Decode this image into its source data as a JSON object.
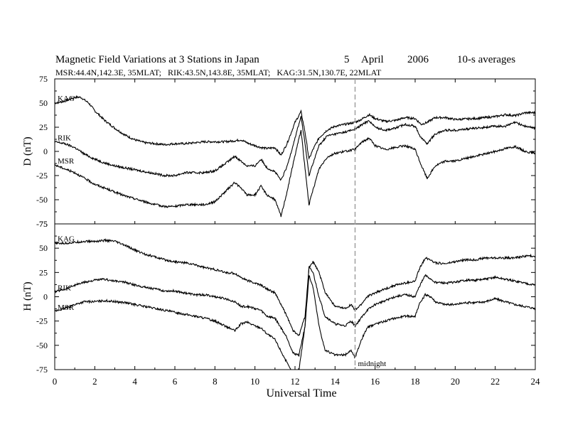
{
  "header": {
    "title_main": "Magnetic Field Variations at 3 Stations in Japan",
    "title_day": "5",
    "title_month": "April",
    "title_year": "2006",
    "title_avg": "10-s averages",
    "subtitle": "MSR:44.4N,142.3E, 35MLAT;   RIK:43.5N,143.8E, 35MLAT;   KAG:31.5N,130.7E, 22MLAT"
  },
  "chart_data": {
    "type": "line",
    "xlabel": "Universal Time",
    "xlim": [
      0,
      24
    ],
    "x_ticks": [
      "0",
      "2",
      "4",
      "6",
      "8",
      "10",
      "12",
      "14",
      "16",
      "18",
      "20",
      "22",
      "24"
    ],
    "midnight_marker": {
      "x": 15,
      "label": "midnight",
      "color": "#a0a0a0"
    },
    "grid": false,
    "line_color": "#000000",
    "panels": [
      {
        "ylabel": "D (nT)",
        "ylim": [
          -75,
          75
        ],
        "y_ticks": [
          "75",
          "50",
          "25",
          "0",
          "-25",
          "-50",
          "-75"
        ],
        "series": [
          {
            "name": "KAG",
            "x": [
              0,
              0.5,
              1,
              1.3,
              1.7,
              2,
              2.5,
              3,
              3.5,
              4,
              4.5,
              5,
              5.5,
              6,
              6.5,
              7,
              7.5,
              8,
              8.5,
              9,
              9.3,
              9.7,
              10,
              10.3,
              10.6,
              11,
              11.3,
              11.6,
              12,
              12.3,
              12.5,
              12.7,
              12.9,
              13.2,
              13.6,
              14,
              14.5,
              15,
              15.3,
              15.7,
              16,
              16.5,
              17,
              17.5,
              18,
              18.3,
              18.6,
              19,
              19.5,
              20,
              21,
              22,
              22.5,
              23,
              23.5,
              24
            ],
            "values": [
              50,
              52,
              56,
              56,
              50,
              42,
              32,
              24,
              17,
              12,
              9,
              8,
              7,
              8,
              8,
              9,
              10,
              10,
              10,
              11,
              12,
              8,
              6,
              4,
              3,
              4,
              -4,
              8,
              30,
              41,
              20,
              -8,
              2,
              14,
              22,
              26,
              28,
              30,
              33,
              38,
              34,
              31,
              32,
              35,
              34,
              28,
              30,
              35,
              35,
              33,
              34,
              36,
              38,
              37,
              40,
              40
            ]
          },
          {
            "name": "RIK",
            "x": [
              0,
              0.5,
              1,
              1.5,
              2,
              2.5,
              3,
              3.5,
              4,
              4.5,
              5,
              5.5,
              6,
              6.5,
              7,
              7.5,
              8,
              8.5,
              9,
              9.3,
              9.6,
              10,
              10.3,
              10.6,
              11,
              11.3,
              11.6,
              12,
              12.3,
              12.5,
              12.7,
              12.9,
              13.2,
              13.6,
              14,
              14.5,
              15,
              15.3,
              15.7,
              16,
              16.5,
              17,
              17.5,
              18,
              18.3,
              18.6,
              19,
              19.5,
              20,
              21,
              22,
              22.5,
              23,
              23.5,
              24
            ],
            "values": [
              10,
              8,
              4,
              -3,
              -8,
              -12,
              -15,
              -17,
              -19,
              -21,
              -23,
              -25,
              -25,
              -22,
              -22,
              -22,
              -20,
              -13,
              -5,
              -10,
              -15,
              -15,
              -8,
              -17,
              -21,
              -30,
              -16,
              14,
              36,
              8,
              -25,
              -12,
              6,
              16,
              18,
              20,
              23,
              27,
              32,
              25,
              22,
              24,
              28,
              26,
              14,
              8,
              18,
              22,
              22,
              24,
              26,
              26,
              30,
              26,
              24
            ]
          },
          {
            "name": "MSR",
            "x": [
              0,
              0.5,
              1,
              1.5,
              2,
              2.5,
              3,
              3.5,
              4,
              4.5,
              5,
              5.5,
              6,
              6.5,
              7,
              7.5,
              8,
              8.5,
              9,
              9.3,
              9.6,
              10,
              10.3,
              10.6,
              11,
              11.3,
              11.6,
              12,
              12.3,
              12.5,
              12.7,
              12.9,
              13.2,
              13.6,
              14,
              14.5,
              15,
              15.3,
              15.7,
              16,
              16.5,
              17,
              17.5,
              18,
              18.3,
              18.6,
              19,
              19.5,
              20,
              21,
              22,
              22.5,
              23,
              23.5,
              24
            ],
            "values": [
              -14,
              -18,
              -22,
              -28,
              -34,
              -38,
              -42,
              -46,
              -49,
              -52,
              -55,
              -57,
              -57,
              -55,
              -55,
              -55,
              -52,
              -42,
              -32,
              -38,
              -45,
              -45,
              -36,
              -45,
              -50,
              -67,
              -42,
              -4,
              22,
              -18,
              -55,
              -40,
              -18,
              -6,
              -2,
              0,
              2,
              9,
              14,
              6,
              2,
              4,
              6,
              2,
              -14,
              -28,
              -15,
              -10,
              -10,
              -5,
              0,
              3,
              5,
              0,
              -2
            ]
          }
        ],
        "annotations": [
          "KAG",
          "RIK",
          "MSR"
        ]
      },
      {
        "ylabel": "H (nT)",
        "ylim": [
          -75,
          75
        ],
        "y_ticks": [
          "75",
          "50",
          "25",
          "0",
          "-25",
          "-50",
          "-75"
        ],
        "series": [
          {
            "name": "KAG",
            "x": [
              0,
              0.5,
              1,
              1.5,
              2,
              2.5,
              3,
              3.5,
              4,
              4.5,
              5,
              5.5,
              6,
              6.5,
              7,
              7.5,
              8,
              8.5,
              9,
              9.3,
              9.6,
              10,
              10.3,
              10.6,
              11,
              11.3,
              11.6,
              11.9,
              12.2,
              12.5,
              12.7,
              12.9,
              13.2,
              13.5,
              14,
              14.5,
              14.8,
              15,
              15.3,
              15.6,
              16,
              16.5,
              17,
              17.5,
              18,
              18.2,
              18.5,
              18.8,
              19,
              19.5,
              20,
              20.5,
              21,
              21.5,
              22,
              22.5,
              23,
              23.5,
              24
            ],
            "values": [
              55,
              55,
              56,
              57,
              57,
              58,
              57,
              53,
              48,
              44,
              41,
              38,
              36,
              35,
              33,
              30,
              28,
              25,
              24,
              20,
              17,
              14,
              12,
              8,
              4,
              -8,
              -20,
              -35,
              -40,
              -20,
              30,
              36,
              25,
              5,
              -10,
              -12,
              -8,
              -14,
              -8,
              0,
              4,
              8,
              12,
              14,
              16,
              28,
              40,
              38,
              35,
              34,
              36,
              38,
              38,
              40,
              40,
              40,
              40,
              42,
              42
            ]
          },
          {
            "name": "RIK",
            "x": [
              0,
              0.5,
              1,
              1.5,
              2,
              2.5,
              3,
              3.5,
              4,
              4.5,
              5,
              5.5,
              6,
              6.5,
              7,
              7.5,
              8,
              8.5,
              9,
              9.3,
              9.6,
              10,
              10.3,
              10.6,
              11,
              11.3,
              11.6,
              11.9,
              12.2,
              12.5,
              12.7,
              12.9,
              13.2,
              13.5,
              14,
              14.5,
              14.8,
              15,
              15.3,
              15.6,
              16,
              16.5,
              17,
              17.5,
              18,
              18.2,
              18.5,
              18.8,
              19,
              19.5,
              20,
              20.5,
              21,
              21.5,
              22,
              22.5,
              23,
              23.5,
              24
            ],
            "values": [
              5,
              8,
              12,
              15,
              17,
              18,
              16,
              15,
              12,
              10,
              8,
              6,
              6,
              4,
              2,
              2,
              0,
              -2,
              -5,
              -10,
              -10,
              -12,
              -14,
              -20,
              -22,
              -32,
              -42,
              -58,
              -60,
              -30,
              30,
              25,
              0,
              -20,
              -28,
              -30,
              -25,
              -30,
              -22,
              -14,
              -8,
              -4,
              0,
              2,
              0,
              10,
              22,
              18,
              15,
              14,
              15,
              17,
              17,
              18,
              20,
              18,
              16,
              14,
              12
            ]
          },
          {
            "name": "MSR",
            "x": [
              0,
              0.5,
              1,
              1.5,
              2,
              2.5,
              3,
              3.5,
              4,
              4.5,
              5,
              5.5,
              6,
              6.5,
              7,
              7.5,
              8,
              8.5,
              9,
              9.3,
              9.6,
              10,
              10.3,
              10.6,
              11,
              11.3,
              11.6,
              11.9,
              12.2,
              12.5,
              12.7,
              12.9,
              13.2,
              13.5,
              14,
              14.5,
              14.8,
              15,
              15.3,
              15.6,
              16,
              16.5,
              17,
              17.5,
              18,
              18.2,
              18.5,
              18.8,
              19,
              19.5,
              20,
              20.5,
              21,
              21.5,
              22,
              22.5,
              23,
              23.5,
              24
            ],
            "values": [
              -15,
              -12,
              -8,
              -5,
              -5,
              -4,
              -5,
              -6,
              -8,
              -10,
              -12,
              -14,
              -16,
              -18,
              -20,
              -22,
              -25,
              -30,
              -35,
              -28,
              -26,
              -30,
              -32,
              -38,
              -44,
              -56,
              -68,
              -80,
              -75,
              -30,
              22,
              10,
              -30,
              -55,
              -60,
              -60,
              -55,
              -63,
              -45,
              -32,
              -28,
              -25,
              -22,
              -20,
              -20,
              -8,
              2,
              0,
              -5,
              -8,
              -8,
              -6,
              -6,
              -5,
              -2,
              -5,
              -8,
              -10,
              -12
            ]
          }
        ],
        "annotations": [
          "KAG",
          "RIK",
          "MSR"
        ]
      }
    ]
  }
}
